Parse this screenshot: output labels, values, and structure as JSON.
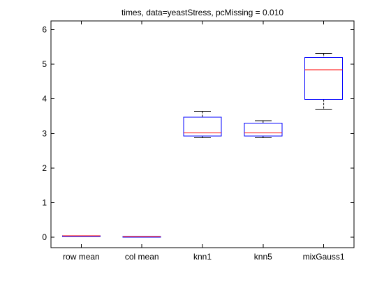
{
  "chart_data": {
    "type": "boxplot",
    "title": "times, data=yeastStress, pcMissing = 0.010",
    "xlabel": "",
    "ylabel": "",
    "categories": [
      "row mean",
      "col mean",
      "knn1",
      "knn5",
      "mixGauss1"
    ],
    "ylim": [
      -0.3,
      6.25
    ],
    "yticks": [
      0,
      1,
      2,
      3,
      4,
      5,
      6
    ],
    "ytick_labels": [
      "0",
      "1",
      "2",
      "3",
      "4",
      "5",
      "6"
    ],
    "grid": false,
    "box_color": "#0000ff",
    "median_color": "#ff0000",
    "whisker_color": "#000000",
    "boxes": [
      {
        "category": "row mean",
        "whisker_low": 0.04,
        "q1": 0.04,
        "median": 0.04,
        "q3": 0.04,
        "whisker_high": 0.04
      },
      {
        "category": "col mean",
        "whisker_low": 0.01,
        "q1": 0.01,
        "median": 0.01,
        "q3": 0.02,
        "whisker_high": 0.02
      },
      {
        "category": "knn1",
        "whisker_low": 2.87,
        "q1": 2.92,
        "median": 3.02,
        "q3": 3.47,
        "whisker_high": 3.64
      },
      {
        "category": "knn5",
        "whisker_low": 2.87,
        "q1": 2.92,
        "median": 3.02,
        "q3": 3.3,
        "whisker_high": 3.37
      },
      {
        "category": "mixGauss1",
        "whisker_low": 3.7,
        "q1": 3.98,
        "median": 4.84,
        "q3": 5.19,
        "whisker_high": 5.31
      }
    ]
  }
}
